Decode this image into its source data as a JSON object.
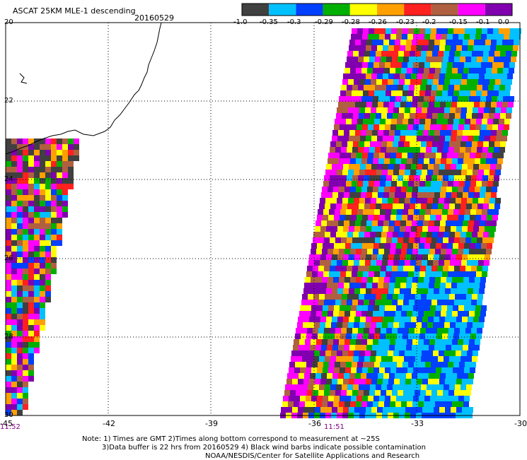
{
  "header": {
    "title": "ASCAT 25KM MLE-1 descending",
    "date": "20160529"
  },
  "colorbar": {
    "colors": [
      "#404040",
      "#00c0ff",
      "#0040ff",
      "#00b000",
      "#ffff00",
      "#ffa000",
      "#ff2020",
      "#b06040",
      "#ff00ff",
      "#8000b0"
    ],
    "labels": [
      "-1.0",
      "-0.35",
      "-0.3",
      "-0.29",
      "-0.28",
      "-0.26",
      "-0.23",
      "-0.2",
      "-0.15",
      "-0.1",
      "0.0"
    ]
  },
  "axes": {
    "y_ticks": [
      "20",
      "22",
      "24",
      "26",
      "28",
      "30"
    ],
    "x_ticks": [
      "-45",
      "-42",
      "-39",
      "-36",
      "-33",
      "-30"
    ]
  },
  "times": [
    "11:52",
    "11:51"
  ],
  "notes": [
    "Note: 1) Times are GMT 2)Times along bottom correspond to measurement at ~25S",
    "3)Data buffer is 22 hrs from 20160529 4) Black wind barbs indicate possible contamination",
    "NOAA/NESDIS/Center for Satellite Applications and Research"
  ]
}
